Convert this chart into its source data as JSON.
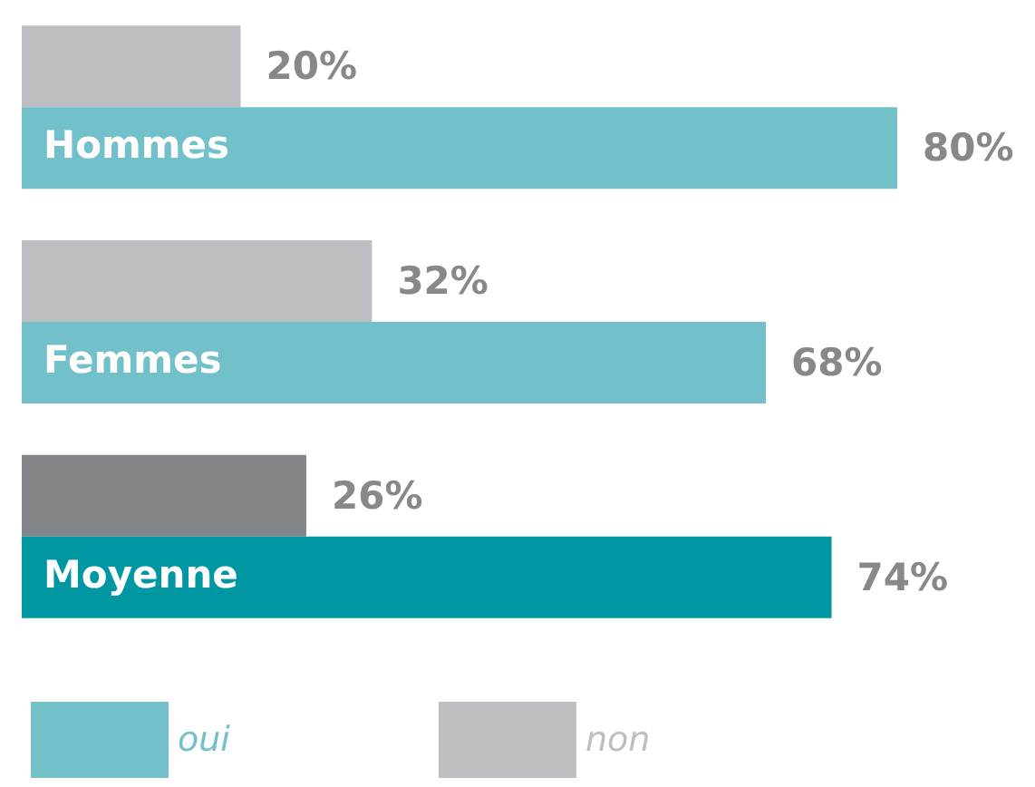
{
  "chart_data": {
    "type": "bar",
    "orientation": "horizontal",
    "categories": [
      "Hommes",
      "Femmes",
      "Moyenne"
    ],
    "series": [
      {
        "name": "non",
        "color": "#bdbec2",
        "colors": [
          "#bdbec2",
          "#bdbec2",
          "#838588"
        ],
        "values": [
          20,
          32,
          26
        ],
        "value_labels": [
          "20%",
          "32%",
          "26%"
        ]
      },
      {
        "name": "oui",
        "color": "#72c0ca",
        "colors": [
          "#72c0ca",
          "#72c0ca",
          "#0097a3"
        ],
        "values": [
          80,
          68,
          74
        ],
        "value_labels": [
          "80%",
          "68%",
          "74%"
        ]
      }
    ],
    "legend": "bottom left",
    "grid": false,
    "tick_labels": "y"
  }
}
